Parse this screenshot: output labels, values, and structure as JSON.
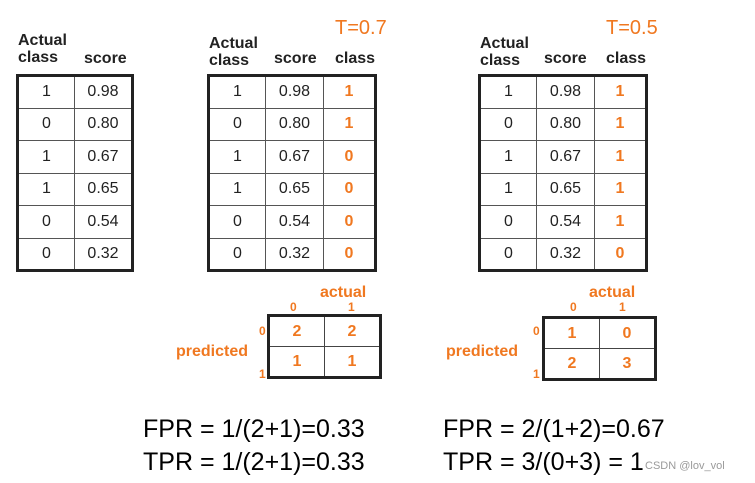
{
  "headers": {
    "actual": "Actual class",
    "score": "score",
    "class": "class"
  },
  "tables": [
    {
      "rows": [
        {
          "actual": "1",
          "score": "0.98"
        },
        {
          "actual": "0",
          "score": "0.80"
        },
        {
          "actual": "1",
          "score": "0.67"
        },
        {
          "actual": "1",
          "score": "0.65"
        },
        {
          "actual": "0",
          "score": "0.54"
        },
        {
          "actual": "0",
          "score": "0.32"
        }
      ]
    },
    {
      "threshold": "T=0.7",
      "rows": [
        {
          "actual": "1",
          "score": "0.98",
          "class": "1"
        },
        {
          "actual": "0",
          "score": "0.80",
          "class": "1"
        },
        {
          "actual": "1",
          "score": "0.67",
          "class": "0"
        },
        {
          "actual": "1",
          "score": "0.65",
          "class": "0"
        },
        {
          "actual": "0",
          "score": "0.54",
          "class": "0"
        },
        {
          "actual": "0",
          "score": "0.32",
          "class": "0"
        }
      ]
    },
    {
      "threshold": "T=0.5",
      "rows": [
        {
          "actual": "1",
          "score": "0.98",
          "class": "1"
        },
        {
          "actual": "0",
          "score": "0.80",
          "class": "1"
        },
        {
          "actual": "1",
          "score": "0.67",
          "class": "1"
        },
        {
          "actual": "1",
          "score": "0.65",
          "class": "1"
        },
        {
          "actual": "0",
          "score": "0.54",
          "class": "1"
        },
        {
          "actual": "0",
          "score": "0.32",
          "class": "0"
        }
      ]
    }
  ],
  "confusion": [
    {
      "actual_label": "actual",
      "predicted_label": "predicted",
      "col_labels": [
        "0",
        "1"
      ],
      "row_labels": [
        "0",
        "1"
      ],
      "cells": [
        [
          "2",
          "2"
        ],
        [
          "1",
          "1"
        ]
      ]
    },
    {
      "actual_label": "actual",
      "predicted_label": "predicted",
      "col_labels": [
        "0",
        "1"
      ],
      "row_labels": [
        "0",
        "1"
      ],
      "cells": [
        [
          "1",
          "0"
        ],
        [
          "2",
          "3"
        ]
      ]
    }
  ],
  "formulas": [
    {
      "fpr": "FPR = 1/(2+1)=0.33",
      "tpr": "TPR = 1/(2+1)=0.33"
    },
    {
      "fpr": "FPR = 2/(1+2)=0.67",
      "tpr": "TPR = 3/(0+3) = 1"
    }
  ],
  "watermark": "CSDN @lov_vol"
}
